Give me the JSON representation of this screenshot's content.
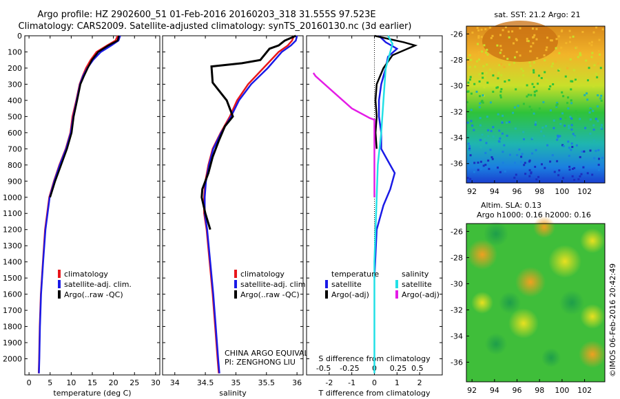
{
  "title_line1": "Argo profile: HZ 2902600_51 01-Feb-2016 20160203_318 31.555S 97.523E",
  "title_line2": "Climatology: CARS2009. Satellite-adjusted climatology: synTS_20160130.nc (3d earlier)",
  "colors": {
    "red": "#e8161b",
    "blue": "#1a1ae6",
    "black": "#000000",
    "cyan": "#22e0e6",
    "magenta": "#e41ce6"
  },
  "chart_data": [
    {
      "type": "line",
      "id": "temperature",
      "xlabel": "temperature (deg C)",
      "ylabel": "",
      "xlim": [
        -1,
        31
      ],
      "ylim": [
        2100,
        0
      ],
      "xticks": [
        "0",
        "5",
        "10",
        "15",
        "20",
        "25",
        "30"
      ],
      "yticks": [
        "0",
        "100",
        "200",
        "300",
        "400",
        "500",
        "600",
        "700",
        "800",
        "900",
        "1000",
        "1100",
        "1200",
        "1300",
        "1400",
        "1500",
        "1600",
        "1700",
        "1800",
        "1900",
        "2000"
      ],
      "legend": [
        "climatology",
        "satellite-adj. clim.",
        "Argo(..raw -QC)"
      ],
      "series": [
        {
          "name": "climatology",
          "color": "red",
          "x": [
            21.0,
            20.5,
            18.5,
            16.0,
            14.6,
            13.5,
            12.7,
            12.0,
            11.2,
            10.3,
            9.8,
            8.7,
            7.2,
            5.9,
            4.8,
            3.8,
            3.3,
            2.8,
            2.55,
            2.4,
            2.3
          ],
          "y": [
            0,
            30,
            60,
            100,
            150,
            200,
            250,
            300,
            400,
            500,
            600,
            700,
            800,
            900,
            1000,
            1200,
            1400,
            1600,
            1800,
            2000,
            2090
          ]
        },
        {
          "name": "satellite-adj. clim.",
          "color": "blue",
          "x": [
            21.6,
            21.2,
            19.5,
            17.0,
            15.2,
            13.8,
            12.8,
            12.1,
            11.3,
            10.5,
            9.9,
            8.8,
            7.3,
            6.0,
            4.9,
            3.9,
            3.35,
            2.85,
            2.6,
            2.45,
            2.35
          ],
          "y": [
            0,
            30,
            60,
            100,
            150,
            200,
            250,
            300,
            400,
            500,
            600,
            700,
            800,
            900,
            1000,
            1200,
            1400,
            1600,
            1800,
            2000,
            2090
          ]
        },
        {
          "name": "Argo(..raw -QC)",
          "color": "black",
          "x": [
            21.3,
            21.0,
            18.8,
            16.4,
            14.9,
            13.9,
            13.0,
            12.2,
            11.4,
            10.6,
            10.1,
            9.0,
            7.6,
            6.2,
            5.0
          ],
          "y": [
            0,
            30,
            60,
            100,
            150,
            200,
            250,
            300,
            400,
            500,
            600,
            700,
            800,
            900,
            1000
          ]
        }
      ]
    },
    {
      "type": "line",
      "id": "salinity",
      "xlabel": "salinity",
      "xlim": [
        33.8,
        36.1
      ],
      "ylim": [
        2100,
        0
      ],
      "xticks": [
        "34",
        "34.5",
        "35",
        "35.5",
        "36"
      ],
      "legend": [
        "climatology",
        "satellite-adj. clim.",
        "Argo(..raw -QC)"
      ],
      "annotation_line1": "CHINA ARGO EQUIVALENT",
      "annotation_line2": "PI: ZENGHONG LIU",
      "series": [
        {
          "name": "climatology",
          "color": "red",
          "x": [
            35.95,
            35.92,
            35.85,
            35.7,
            35.45,
            35.2,
            35.02,
            34.9,
            34.75,
            34.62,
            34.55,
            34.5,
            34.48,
            34.48,
            34.52,
            34.57,
            34.62,
            34.66,
            34.7,
            34.72
          ],
          "y": [
            0,
            30,
            60,
            100,
            200,
            300,
            400,
            500,
            600,
            700,
            800,
            900,
            1000,
            1100,
            1200,
            1400,
            1600,
            1800,
            2000,
            2090
          ]
        },
        {
          "name": "satellite-adj. clim.",
          "color": "blue",
          "x": [
            36.0,
            35.98,
            35.9,
            35.75,
            35.52,
            35.25,
            35.05,
            34.92,
            34.76,
            34.63,
            34.56,
            34.51,
            34.49,
            34.49,
            34.53,
            34.58,
            34.63,
            34.67,
            34.71,
            34.73
          ],
          "y": [
            0,
            30,
            60,
            100,
            200,
            300,
            400,
            500,
            600,
            700,
            800,
            900,
            1000,
            1100,
            1200,
            1400,
            1600,
            1800,
            2000,
            2090
          ]
        },
        {
          "name": "Argo(..raw -QC)",
          "color": "black",
          "x": [
            35.98,
            35.8,
            35.7,
            35.55,
            35.4,
            35.1,
            34.6,
            34.62,
            34.85,
            34.95,
            34.82,
            34.72,
            34.62,
            34.55,
            34.5,
            34.45,
            34.44,
            34.5,
            34.58
          ],
          "y": [
            0,
            30,
            60,
            80,
            150,
            170,
            190,
            290,
            400,
            500,
            560,
            650,
            750,
            850,
            900,
            950,
            1000,
            1100,
            1200
          ]
        }
      ]
    },
    {
      "type": "line",
      "id": "differences",
      "xlabel": "T difference from climatology",
      "xlabel_top": "S difference from climatology",
      "xlim": [
        -3.0,
        3.0
      ],
      "ylim": [
        2100,
        0
      ],
      "xticks": [
        "-2",
        "-1",
        "0",
        "1",
        "2"
      ],
      "xticks_top": [
        "-0.5",
        "-0.25",
        "0",
        "0.25",
        "0.5"
      ],
      "legend_headers": [
        "temperature",
        "salinity"
      ],
      "legend": [
        "satellite",
        "Argo(-adj)",
        "satellite",
        "Argo(-adj)"
      ],
      "series": [
        {
          "name": "temperature satellite",
          "color": "blue",
          "x": [
            0.2,
            0.5,
            1.0,
            0.6,
            0.5,
            0.3,
            0.2,
            0.2,
            0.3,
            0.3,
            0.5,
            0.9,
            0.7,
            0.4,
            0.1,
            0.0
          ],
          "y": [
            0,
            40,
            80,
            130,
            200,
            300,
            400,
            500,
            600,
            700,
            750,
            850,
            950,
            1050,
            1200,
            1500
          ]
        },
        {
          "name": "temperature Argo(-adj)",
          "color": "black",
          "x": [
            0.0,
            1.3,
            1.8,
            0.8,
            0.4,
            0.1,
            0.05,
            0.1,
            0.05,
            0.1
          ],
          "y": [
            0,
            40,
            60,
            120,
            200,
            300,
            400,
            500,
            600,
            700
          ]
        },
        {
          "name": "salinity satellite",
          "color": "cyan",
          "x": [
            0.6,
            0.8,
            0.5,
            0.4,
            0.3,
            0.15,
            0.1,
            0.05,
            0.0,
            0.0,
            0.0,
            0.0
          ],
          "y": [
            0,
            50,
            200,
            400,
            600,
            800,
            1000,
            1200,
            1400,
            1600,
            1800,
            2090
          ]
        },
        {
          "name": "salinity Argo(-adj)",
          "color": "magenta",
          "x": [
            -2.7,
            -2.6,
            -1.8,
            -1.0,
            -0.2,
            0.0,
            0.0,
            0.0,
            0.0
          ],
          "y": [
            230,
            250,
            350,
            450,
            510,
            520,
            600,
            800,
            1000
          ]
        }
      ]
    }
  ],
  "sst_map": {
    "title": "sat. SST: 21.2 Argo: 21",
    "xticks": [
      "92",
      "94",
      "96",
      "98",
      "100",
      "102"
    ],
    "yticks": [
      "-26",
      "-28",
      "-30",
      "-32",
      "-34",
      "-36"
    ]
  },
  "sla_map": {
    "title_line1": "Altim. SLA: 0.13",
    "title_line2": "Argo h1000: 0.16 h2000: 0.16",
    "xticks": [
      "92",
      "94",
      "96",
      "98",
      "100",
      "102"
    ],
    "yticks": [
      "-26",
      "-28",
      "-30",
      "-32",
      "-34",
      "-36"
    ]
  },
  "footer_note": "©IMOS 06-Feb-2016 20:42:49"
}
